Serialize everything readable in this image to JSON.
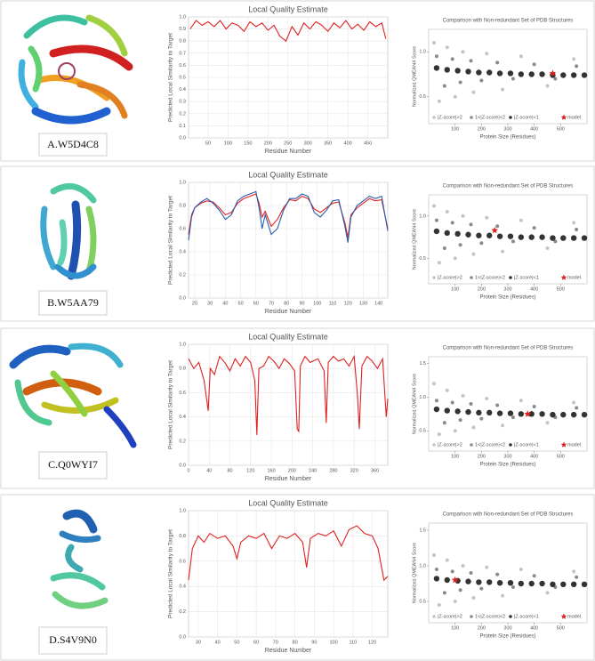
{
  "labels": [
    "A.W5D4C8",
    "B.W5AA79",
    "C.Q0WYI7",
    "D.S4V9N0"
  ],
  "chart_data": [
    {
      "type": "line",
      "title": "Local Quality Estimate",
      "x_label": "Residue Number",
      "y_label": "Predicted Local Similarity to Target",
      "x": [
        5,
        20,
        35,
        50,
        65,
        80,
        95,
        110,
        125,
        140,
        155,
        170,
        185,
        200,
        215,
        230,
        245,
        260,
        275,
        290,
        305,
        320,
        335,
        350,
        365,
        380,
        395,
        410,
        425,
        440,
        455,
        470,
        485,
        495
      ],
      "series": [
        {
          "color": "#e02020",
          "values": [
            0.9,
            0.97,
            0.93,
            0.96,
            0.92,
            0.97,
            0.9,
            0.95,
            0.93,
            0.88,
            0.96,
            0.92,
            0.95,
            0.89,
            0.93,
            0.84,
            0.8,
            0.92,
            0.85,
            0.95,
            0.9,
            0.96,
            0.93,
            0.88,
            0.95,
            0.91,
            0.97,
            0.9,
            0.94,
            0.89,
            0.96,
            0.92,
            0.95,
            0.82
          ]
        }
      ],
      "xlim": [
        1,
        500
      ],
      "xticks": [
        50,
        100,
        150,
        200,
        250,
        300,
        350,
        400,
        450
      ],
      "ylim": [
        0,
        1
      ],
      "yticks": [
        {
          "value": 0,
          "label": "0.0"
        },
        0.1,
        0.2,
        0.3,
        0.4,
        0.5,
        0.6,
        0.7,
        0.8,
        0.9,
        {
          "value": 1,
          "label": "1.0"
        }
      ],
      "grid": true
    },
    {
      "type": "scatter",
      "title": "Comparison with Non-redundant Set of PDB Structures",
      "x_label": "Protein Size (Residues)",
      "y_label": "Normalized QMEAN4 Score",
      "series": [
        {
          "name": "|Z-score|>2",
          "color": "#c4c4c4",
          "x": [
            20,
            40,
            70,
            100,
            130,
            170,
            220,
            280,
            350,
            450,
            550
          ],
          "values": [
            1.1,
            0.45,
            1.05,
            0.5,
            1.0,
            0.55,
            0.98,
            0.58,
            0.95,
            0.62,
            0.92
          ]
        },
        {
          "name": "1<|Z-score|<2",
          "color": "#8a8a8a",
          "x": [
            30,
            60,
            90,
            120,
            160,
            200,
            260,
            320,
            400,
            480,
            560
          ],
          "values": [
            0.95,
            0.62,
            0.92,
            0.66,
            0.9,
            0.68,
            0.88,
            0.7,
            0.86,
            0.7,
            0.84
          ]
        },
        {
          "name": "|Z-score|<1",
          "color": "#333333",
          "x": [
            30,
            70,
            110,
            150,
            190,
            230,
            270,
            310,
            350,
            390,
            430,
            470,
            510,
            550,
            590
          ],
          "values": [
            0.82,
            0.8,
            0.79,
            0.78,
            0.77,
            0.77,
            0.76,
            0.76,
            0.75,
            0.75,
            0.75,
            0.74,
            0.74,
            0.74,
            0.74
          ]
        },
        {
          "name": "model",
          "color": "#e02020",
          "marker": "star",
          "x": [
            470
          ],
          "values": [
            0.76
          ]
        }
      ],
      "xlim": [
        0,
        600
      ],
      "xticks": [
        100,
        200,
        300,
        400,
        500
      ],
      "ylim": [
        0.2,
        1.25
      ],
      "yticks": [
        0.5,
        {
          "value": 1,
          "label": "1.0"
        }
      ],
      "legend": "bottom"
    },
    {
      "type": "line",
      "title": "Local Quality Estimate",
      "x_label": "Residue Number",
      "y_label": "Predicted Local Similarity to Target",
      "x": [
        16,
        18,
        20,
        24,
        28,
        32,
        36,
        40,
        44,
        48,
        52,
        56,
        60,
        62,
        64,
        66,
        70,
        74,
        78,
        82,
        86,
        90,
        94,
        98,
        102,
        106,
        110,
        114,
        118,
        120,
        122,
        126,
        130,
        134,
        138,
        142,
        146
      ],
      "series": [
        {
          "color": "#e02020",
          "values": [
            0.55,
            0.72,
            0.78,
            0.82,
            0.84,
            0.83,
            0.78,
            0.72,
            0.74,
            0.82,
            0.86,
            0.88,
            0.9,
            0.82,
            0.7,
            0.75,
            0.62,
            0.68,
            0.78,
            0.85,
            0.84,
            0.88,
            0.86,
            0.77,
            0.74,
            0.78,
            0.82,
            0.83,
            0.65,
            0.52,
            0.72,
            0.78,
            0.82,
            0.86,
            0.84,
            0.85,
            0.6
          ]
        },
        {
          "color": "#2a5caa",
          "values": [
            0.5,
            0.7,
            0.78,
            0.83,
            0.86,
            0.82,
            0.76,
            0.68,
            0.72,
            0.84,
            0.88,
            0.9,
            0.92,
            0.78,
            0.6,
            0.72,
            0.55,
            0.6,
            0.76,
            0.86,
            0.86,
            0.9,
            0.88,
            0.74,
            0.7,
            0.76,
            0.84,
            0.85,
            0.62,
            0.48,
            0.7,
            0.8,
            0.84,
            0.88,
            0.86,
            0.88,
            0.58
          ]
        }
      ],
      "xlim": [
        16,
        146
      ],
      "xticks": [
        20,
        30,
        40,
        50,
        60,
        70,
        80,
        90,
        100,
        110,
        120,
        130,
        140
      ],
      "ylim": [
        0,
        1
      ],
      "yticks": [
        {
          "value": 0,
          "label": "0.0"
        },
        0.2,
        0.4,
        0.6,
        0.8,
        {
          "value": 1,
          "label": "1.0"
        }
      ],
      "grid": true
    },
    {
      "type": "scatter",
      "title": "Comparison with Non-redundant Set of PDB Structures",
      "x_label": "Protein Size (Residues)",
      "y_label": "Normalized QMEAN4 Score",
      "series": [
        {
          "name": "|Z-score|>2",
          "color": "#c4c4c4",
          "x": [
            20,
            40,
            70,
            100,
            130,
            170,
            220,
            280,
            350,
            450,
            550
          ],
          "values": [
            1.12,
            0.45,
            1.05,
            0.5,
            1.0,
            0.55,
            0.98,
            0.58,
            0.95,
            0.62,
            0.92
          ]
        },
        {
          "name": "1<|Z-score|<2",
          "color": "#8a8a8a",
          "x": [
            30,
            60,
            90,
            120,
            160,
            200,
            260,
            320,
            400,
            480,
            560
          ],
          "values": [
            0.95,
            0.62,
            0.92,
            0.66,
            0.9,
            0.68,
            0.88,
            0.7,
            0.86,
            0.7,
            0.84
          ]
        },
        {
          "name": "|Z-score|<1",
          "color": "#333333",
          "x": [
            30,
            70,
            110,
            150,
            190,
            230,
            270,
            310,
            350,
            390,
            430,
            470,
            510,
            550,
            590
          ],
          "values": [
            0.82,
            0.8,
            0.79,
            0.78,
            0.77,
            0.77,
            0.76,
            0.76,
            0.75,
            0.75,
            0.75,
            0.74,
            0.74,
            0.74,
            0.74
          ]
        },
        {
          "name": "model",
          "color": "#e02020",
          "marker": "star",
          "x": [
            250
          ],
          "values": [
            0.83
          ]
        }
      ],
      "xlim": [
        0,
        600
      ],
      "xticks": [
        100,
        200,
        300,
        400,
        500
      ],
      "ylim": [
        0.2,
        1.25
      ],
      "yticks": [
        0.5,
        {
          "value": 1,
          "label": "1.0"
        }
      ],
      "legend": "bottom"
    },
    {
      "type": "line",
      "title": "Local Quality Estimate",
      "x_label": "Residue Number",
      "y_label": "Predicted Local Similarity to Target",
      "x": [
        0,
        10,
        20,
        30,
        38,
        42,
        50,
        60,
        70,
        80,
        90,
        100,
        110,
        120,
        128,
        132,
        136,
        145,
        155,
        165,
        175,
        185,
        195,
        205,
        210,
        213,
        216,
        225,
        235,
        250,
        262,
        266,
        270,
        280,
        290,
        300,
        310,
        320,
        326,
        330,
        335,
        345,
        355,
        365,
        375,
        382,
        385
      ],
      "series": [
        {
          "color": "#e02020",
          "values": [
            0.88,
            0.8,
            0.85,
            0.7,
            0.45,
            0.8,
            0.75,
            0.9,
            0.85,
            0.78,
            0.88,
            0.82,
            0.9,
            0.85,
            0.7,
            0.25,
            0.8,
            0.82,
            0.9,
            0.86,
            0.8,
            0.88,
            0.84,
            0.78,
            0.3,
            0.28,
            0.82,
            0.9,
            0.85,
            0.88,
            0.78,
            0.35,
            0.85,
            0.9,
            0.86,
            0.88,
            0.82,
            0.9,
            0.6,
            0.3,
            0.82,
            0.9,
            0.86,
            0.8,
            0.88,
            0.4,
            0.55
          ]
        }
      ],
      "xlim": [
        0,
        385
      ],
      "xticks": [
        0,
        40,
        80,
        120,
        160,
        200,
        240,
        280,
        320,
        360
      ],
      "ylim": [
        0,
        1
      ],
      "yticks": [
        {
          "value": 0,
          "label": "0.0"
        },
        0.2,
        0.4,
        0.6,
        0.8,
        {
          "value": 1,
          "label": "1.0"
        }
      ],
      "grid": true
    },
    {
      "type": "scatter",
      "title": "Comparison with Non-redundant Set of PDB Structures",
      "x_label": "Protein Size (Residues)",
      "y_label": "Normalized QMEAN4 Score",
      "series": [
        {
          "name": "|Z-score|>2",
          "color": "#c4c4c4",
          "x": [
            20,
            40,
            70,
            100,
            130,
            170,
            220,
            280,
            350,
            450,
            550
          ],
          "values": [
            1.2,
            0.45,
            1.1,
            0.5,
            1.02,
            0.55,
            0.98,
            0.58,
            0.95,
            0.62,
            0.92
          ]
        },
        {
          "name": "1<|Z-score|<2",
          "color": "#8a8a8a",
          "x": [
            30,
            60,
            90,
            120,
            160,
            200,
            260,
            320,
            400,
            480,
            560
          ],
          "values": [
            0.95,
            0.62,
            0.92,
            0.66,
            0.9,
            0.68,
            0.88,
            0.7,
            0.86,
            0.7,
            0.84
          ]
        },
        {
          "name": "|Z-score|<1",
          "color": "#333333",
          "x": [
            30,
            70,
            110,
            150,
            190,
            230,
            270,
            310,
            350,
            390,
            430,
            470,
            510,
            550,
            590
          ],
          "values": [
            0.82,
            0.8,
            0.79,
            0.78,
            0.77,
            0.77,
            0.76,
            0.76,
            0.75,
            0.75,
            0.75,
            0.74,
            0.74,
            0.74,
            0.74
          ]
        },
        {
          "name": "model",
          "color": "#e02020",
          "marker": "star",
          "x": [
            375
          ],
          "values": [
            0.75
          ]
        }
      ],
      "xlim": [
        0,
        600
      ],
      "xticks": [
        100,
        200,
        300,
        400,
        500
      ],
      "ylim": [
        0.2,
        1.6
      ],
      "yticks": [
        0.5,
        {
          "value": 1,
          "label": "1.0"
        },
        1.5
      ],
      "legend": "bottom"
    },
    {
      "type": "line",
      "title": "Local Quality Estimate",
      "x_label": "Residue Number",
      "y_label": "Predicted Local Similarity to Target",
      "x": [
        25,
        27,
        30,
        33,
        36,
        40,
        44,
        48,
        50,
        52,
        56,
        60,
        64,
        68,
        72,
        76,
        80,
        84,
        86,
        88,
        92,
        96,
        100,
        104,
        108,
        112,
        116,
        120,
        123,
        126,
        128
      ],
      "series": [
        {
          "color": "#e02020",
          "values": [
            0.45,
            0.7,
            0.8,
            0.75,
            0.82,
            0.78,
            0.8,
            0.72,
            0.62,
            0.75,
            0.8,
            0.78,
            0.82,
            0.7,
            0.8,
            0.78,
            0.82,
            0.75,
            0.55,
            0.78,
            0.82,
            0.8,
            0.84,
            0.72,
            0.85,
            0.88,
            0.82,
            0.8,
            0.7,
            0.45,
            0.48
          ]
        }
      ],
      "xlim": [
        25,
        128
      ],
      "xticks": [
        30,
        40,
        50,
        60,
        70,
        80,
        90,
        100,
        110,
        120
      ],
      "ylim": [
        0,
        1
      ],
      "yticks": [
        {
          "value": 0,
          "label": "0.0"
        },
        0.2,
        0.4,
        0.6,
        0.8,
        {
          "value": 1,
          "label": "1.0"
        }
      ],
      "grid": true
    },
    {
      "type": "scatter",
      "title": "Comparison with Non-redundant Set of PDB Structures",
      "x_label": "Protein Size (Residues)",
      "y_label": "Normalized QMEAN4 Score",
      "series": [
        {
          "name": "|Z-score|>2",
          "color": "#c4c4c4",
          "x": [
            20,
            40,
            70,
            100,
            130,
            170,
            220,
            280,
            350,
            450,
            550
          ],
          "values": [
            1.15,
            0.45,
            1.08,
            0.5,
            1.0,
            0.55,
            0.98,
            0.58,
            0.95,
            0.62,
            0.92
          ]
        },
        {
          "name": "1<|Z-score|<2",
          "color": "#8a8a8a",
          "x": [
            30,
            60,
            90,
            120,
            160,
            200,
            260,
            320,
            400,
            480,
            560
          ],
          "values": [
            0.95,
            0.62,
            0.92,
            0.66,
            0.9,
            0.68,
            0.88,
            0.7,
            0.86,
            0.7,
            0.84
          ]
        },
        {
          "name": "|Z-score|<1",
          "color": "#333333",
          "x": [
            30,
            70,
            110,
            150,
            190,
            230,
            270,
            310,
            350,
            390,
            430,
            470,
            510,
            550,
            590
          ],
          "values": [
            0.82,
            0.8,
            0.79,
            0.78,
            0.77,
            0.77,
            0.76,
            0.76,
            0.75,
            0.75,
            0.75,
            0.74,
            0.74,
            0.74,
            0.74
          ]
        },
        {
          "name": "model",
          "color": "#e02020",
          "marker": "star",
          "x": [
            100
          ],
          "values": [
            0.8
          ]
        }
      ],
      "xlim": [
        0,
        600
      ],
      "xticks": [
        100,
        200,
        300,
        400,
        500
      ],
      "ylim": [
        0.2,
        1.6
      ],
      "yticks": [
        0.5,
        {
          "value": 1,
          "label": "1.0"
        },
        1.5
      ],
      "legend": "bottom"
    }
  ]
}
